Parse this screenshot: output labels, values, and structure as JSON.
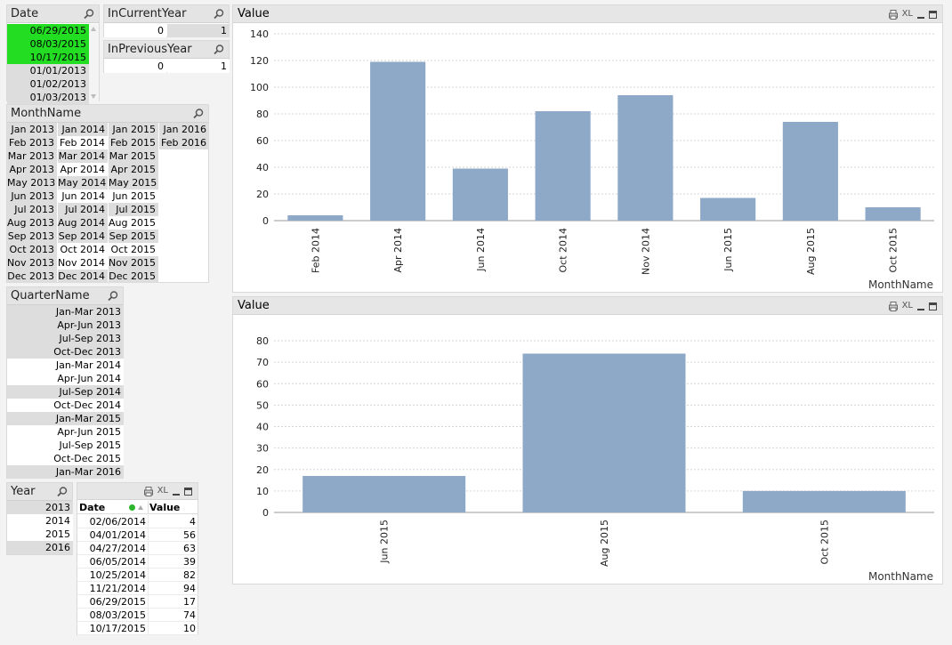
{
  "colors": {
    "selected": "#22dd22",
    "possible": "#ffffff",
    "excluded": "#dddddd",
    "bar": "#8ea9c8"
  },
  "date_box": {
    "title": "Date",
    "items": [
      {
        "label": "06/29/2015",
        "state": "selected"
      },
      {
        "label": "08/03/2015",
        "state": "selected"
      },
      {
        "label": "10/17/2015",
        "state": "selected"
      },
      {
        "label": "01/01/2013",
        "state": "excluded"
      },
      {
        "label": "01/02/2013",
        "state": "excluded"
      },
      {
        "label": "01/03/2013",
        "state": "excluded"
      }
    ]
  },
  "in_current_year": {
    "title": "InCurrentYear",
    "values": [
      "0",
      "1"
    ]
  },
  "in_previous_year": {
    "title": "InPreviousYear",
    "values": [
      "0",
      "1"
    ]
  },
  "monthname_box": {
    "title": "MonthName",
    "columns": [
      [
        "Jan 2013",
        "Feb 2013",
        "Mar 2013",
        "Apr 2013",
        "May 2013",
        "Jun 2013",
        "Jul 2013",
        "Aug 2013",
        "Sep 2013",
        "Oct 2013",
        "Nov 2013",
        "Dec 2013"
      ],
      [
        "Jan 2014",
        "Feb 2014",
        "Mar 2014",
        "Apr 2014",
        "May 2014",
        "Jun 2014",
        "Jul 2014",
        "Aug 2014",
        "Sep 2014",
        "Oct 2014",
        "Nov 2014",
        "Dec 2014"
      ],
      [
        "Jan 2015",
        "Feb 2015",
        "Mar 2015",
        "Apr 2015",
        "May 2015",
        "Jun 2015",
        "Jul 2015",
        "Aug 2015",
        "Sep 2015",
        "Oct 2015",
        "Nov 2015",
        "Dec 2015"
      ],
      [
        "Jan 2016",
        "Feb 2016"
      ]
    ],
    "white_cells": [
      "Feb 2014",
      "Apr 2014",
      "Jun 2014",
      "Oct 2014",
      "Nov 2014",
      "Jun 2015",
      "Aug 2015",
      "Oct 2015"
    ]
  },
  "quartername_box": {
    "title": "QuarterName",
    "items": [
      {
        "label": "Jan-Mar 2013",
        "state": "excluded"
      },
      {
        "label": "Apr-Jun 2013",
        "state": "excluded"
      },
      {
        "label": "Jul-Sep 2013",
        "state": "excluded"
      },
      {
        "label": "Oct-Dec 2013",
        "state": "excluded"
      },
      {
        "label": "Jan-Mar 2014",
        "state": "possible"
      },
      {
        "label": "Apr-Jun 2014",
        "state": "possible"
      },
      {
        "label": "Jul-Sep 2014",
        "state": "excluded"
      },
      {
        "label": "Oct-Dec 2014",
        "state": "possible"
      },
      {
        "label": "Jan-Mar 2015",
        "state": "excluded"
      },
      {
        "label": "Apr-Jun 2015",
        "state": "possible"
      },
      {
        "label": "Jul-Sep 2015",
        "state": "possible"
      },
      {
        "label": "Oct-Dec 2015",
        "state": "possible"
      },
      {
        "label": "Jan-Mar 2016",
        "state": "excluded"
      }
    ]
  },
  "year_box": {
    "title": "Year",
    "items": [
      {
        "label": "2013",
        "state": "excluded"
      },
      {
        "label": "2014",
        "state": "possible"
      },
      {
        "label": "2015",
        "state": "possible"
      },
      {
        "label": "2016",
        "state": "excluded"
      }
    ]
  },
  "table_box": {
    "caption_xl": "XL",
    "headers": [
      "Date",
      "Value"
    ],
    "rows": [
      [
        "02/06/2014",
        "4"
      ],
      [
        "04/01/2014",
        "56"
      ],
      [
        "04/27/2014",
        "63"
      ],
      [
        "06/05/2014",
        "39"
      ],
      [
        "10/25/2014",
        "82"
      ],
      [
        "11/21/2014",
        "94"
      ],
      [
        "06/29/2015",
        "17"
      ],
      [
        "08/03/2015",
        "74"
      ],
      [
        "10/17/2015",
        "10"
      ]
    ]
  },
  "chart_data": [
    {
      "type": "bar",
      "title": "Value",
      "caption_xl": "XL",
      "xlabel": "MonthName",
      "ylabel": "",
      "categories": [
        "Feb 2014",
        "Apr 2014",
        "Jun 2014",
        "Oct 2014",
        "Nov 2014",
        "Jun 2015",
        "Aug 2015",
        "Oct 2015"
      ],
      "values": [
        4,
        119,
        39,
        82,
        94,
        17,
        74,
        10
      ],
      "ylim": [
        0,
        140
      ],
      "yticks": [
        0,
        20,
        40,
        60,
        80,
        100,
        120,
        140
      ],
      "grid": true
    },
    {
      "type": "bar",
      "title": "Value",
      "caption_xl": "XL",
      "xlabel": "MonthName",
      "ylabel": "",
      "categories": [
        "Jun 2015",
        "Aug 2015",
        "Oct 2015"
      ],
      "values": [
        17,
        74,
        10
      ],
      "ylim": [
        0,
        80
      ],
      "yticks": [
        0,
        10,
        20,
        30,
        40,
        50,
        60,
        70,
        80
      ],
      "grid": true
    }
  ]
}
